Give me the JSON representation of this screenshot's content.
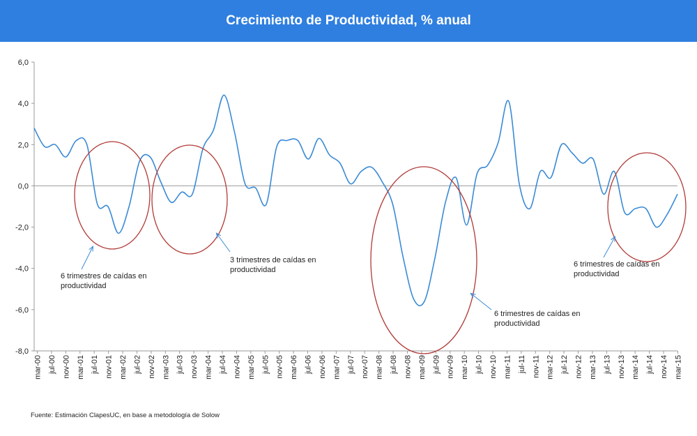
{
  "header": {
    "title": "Crecimiento de Productividad, % anual"
  },
  "footer": {
    "source": "Fuente: Estimación ClapesUC, en base a metodología de Solow"
  },
  "colors": {
    "header_bg": "#2f7fe0",
    "line": "#3a8ad6",
    "circle": "#b03a36",
    "axis": "#999999"
  },
  "chart_data": {
    "type": "line",
    "title": "Crecimiento de Productividad, % anual",
    "xlabel": "",
    "ylabel": "",
    "ylim": [
      -8,
      6
    ],
    "yticks": [
      6,
      4,
      2,
      0,
      -2,
      -4,
      -6,
      -8
    ],
    "ytick_labels": [
      "6,0",
      "4,0",
      "2,0",
      "0,0",
      "-2,0",
      "-4,0",
      "-6,0",
      "-8,0"
    ],
    "grid": false,
    "x_labels": [
      "mar-00",
      "jul-00",
      "nov-00",
      "mar-01",
      "jul-01",
      "nov-01",
      "mar-02",
      "jul-02",
      "nov-02",
      "mar-03",
      "jul-03",
      "nov-03",
      "mar-04",
      "jul-04",
      "nov-04",
      "mar-05",
      "jul-05",
      "nov-05",
      "mar-06",
      "jul-06",
      "nov-06",
      "mar-07",
      "jul-07",
      "nov-07",
      "mar-08",
      "jul-08",
      "nov-08",
      "mar-09",
      "jul-09",
      "nov-09",
      "mar-10",
      "jul-10",
      "nov-10",
      "mar-11",
      "jul-11",
      "nov-11",
      "mar-12",
      "jul-12",
      "nov-12",
      "mar-13",
      "jul-13",
      "nov-13",
      "mar-14",
      "jul-14",
      "nov-14",
      "mar-15"
    ],
    "values": [
      2.8,
      1.9,
      2.0,
      1.4,
      2.2,
      2.0,
      -0.9,
      -1.0,
      -2.3,
      -1.0,
      1.2,
      1.4,
      0.2,
      -0.8,
      -0.3,
      -0.4,
      1.8,
      2.7,
      4.4,
      2.6,
      0.1,
      -0.1,
      -0.9,
      1.9,
      2.2,
      2.2,
      1.3,
      2.3,
      1.5,
      1.1,
      0.1,
      0.7,
      0.9,
      0.2,
      -0.9,
      -3.5,
      -5.5,
      -5.6,
      -3.5,
      -0.8,
      0.4,
      -1.9,
      0.6,
      1.0,
      2.1,
      4.1,
      0.1,
      -1.1,
      0.7,
      0.4,
      2.0,
      1.6,
      1.1,
      1.3,
      -0.4,
      0.7,
      -1.3,
      -1.1,
      -1.1,
      -2.0,
      -1.4,
      -0.4
    ],
    "annotations": [
      {
        "line1": "6 trimestres de caídas en",
        "line2": "productividad"
      },
      {
        "line1": "3 trimestres de caídas en",
        "line2": "productividad"
      },
      {
        "line1": "6 trimestres de caídas en",
        "line2": "productividad"
      },
      {
        "line1": "6 trimestres de caídas en",
        "line2": "productividad"
      }
    ]
  }
}
